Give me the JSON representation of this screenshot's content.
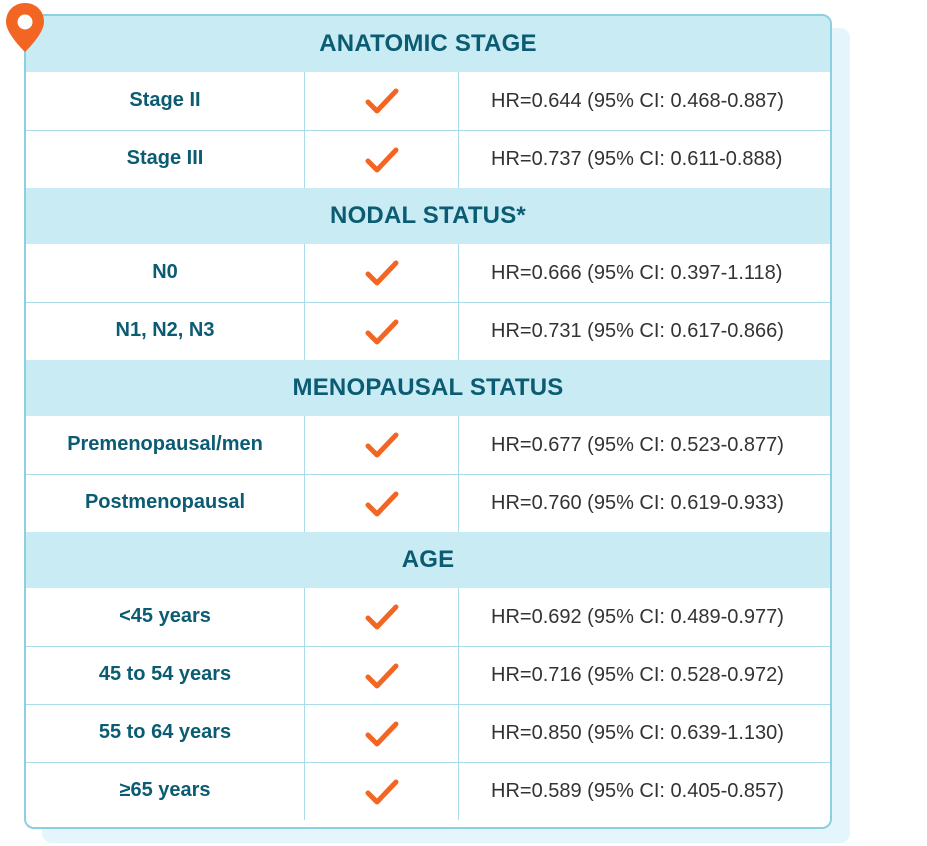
{
  "sections": [
    {
      "title": "ANATOMIC STAGE",
      "rows": [
        {
          "label": "Stage II",
          "hr": "HR=0.644 (95% CI: 0.468-0.887)"
        },
        {
          "label": "Stage III",
          "hr": "HR=0.737 (95% CI: 0.611-0.888)"
        }
      ]
    },
    {
      "title": "NODAL STATUS*",
      "rows": [
        {
          "label": "N0",
          "hr": "HR=0.666 (95% CI: 0.397-1.118)"
        },
        {
          "label": "N1, N2, N3",
          "hr": "HR=0.731 (95% CI: 0.617-0.866)"
        }
      ]
    },
    {
      "title": "MENOPAUSAL STATUS",
      "rows": [
        {
          "label": "Premenopausal/men",
          "hr": "HR=0.677 (95% CI: 0.523-0.877)"
        },
        {
          "label": "Postmenopausal",
          "hr": "HR=0.760 (95% CI: 0.619-0.933)"
        }
      ]
    },
    {
      "title": "AGE",
      "rows": [
        {
          "label": "<45 years",
          "hr": "HR=0.692 (95% CI: 0.489-0.977)"
        },
        {
          "label": "45 to 54 years",
          "hr": "HR=0.716 (95% CI: 0.528-0.972)"
        },
        {
          "label": "55 to 64 years",
          "hr": "HR=0.850 (95% CI: 0.639-1.130)"
        },
        {
          "label": "≥65 years",
          "hr": "HR=0.589 (95% CI: 0.405-0.857)"
        }
      ]
    }
  ],
  "colors": {
    "header_bg": "#c9ebf4",
    "header_text": "#0b5c72",
    "check": "#f26522",
    "pin": "#f26522",
    "border": "#8ccfe0"
  },
  "icons": {
    "row_marker": "checkmark-icon",
    "corner": "location-pin-icon"
  }
}
